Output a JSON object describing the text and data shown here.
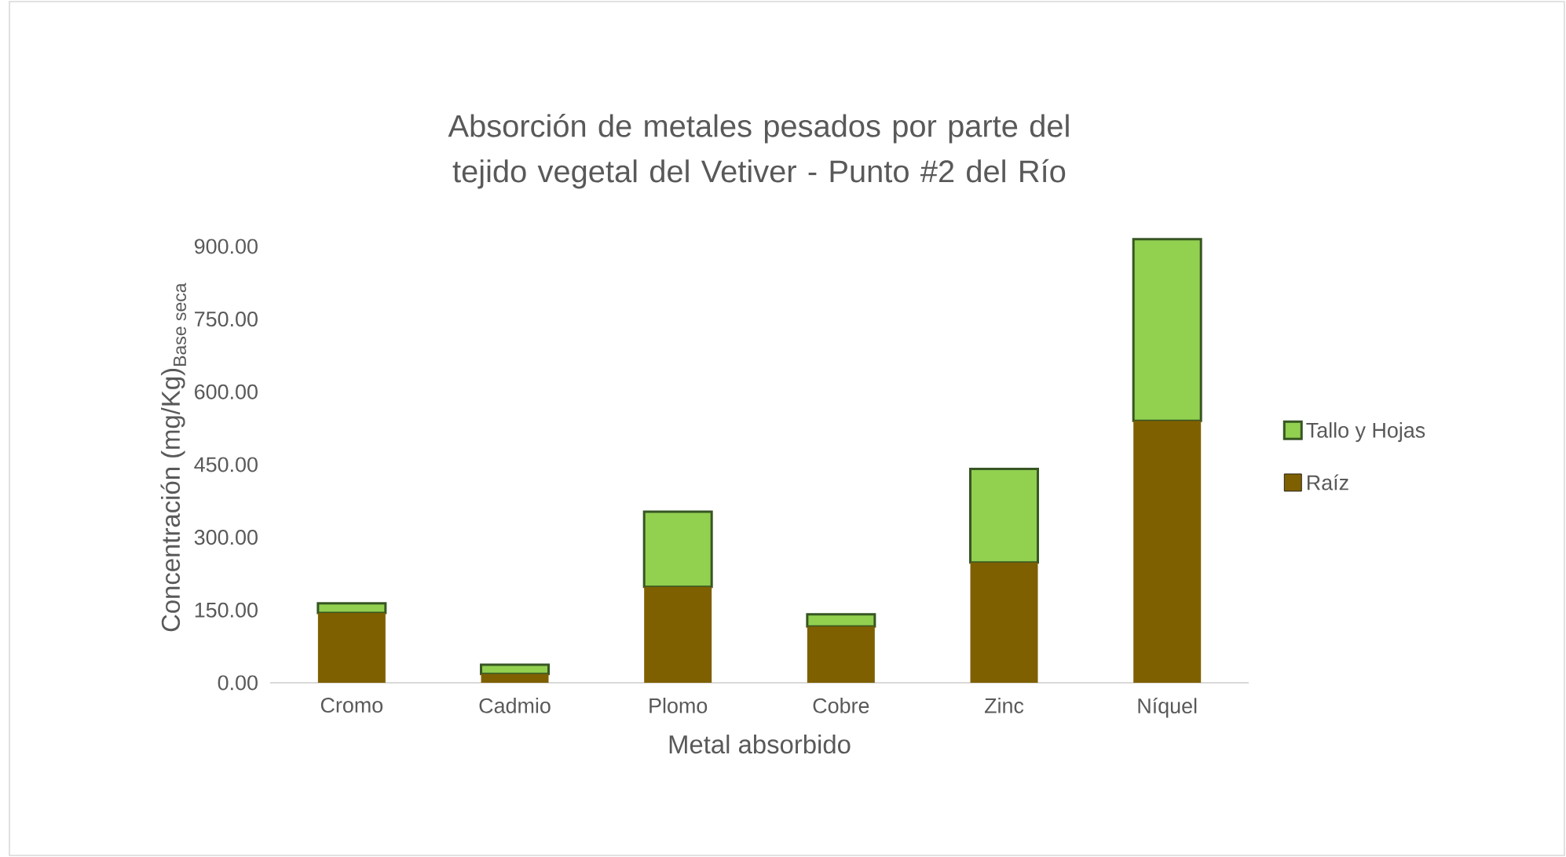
{
  "chart_data": {
    "type": "bar",
    "stacked": true,
    "title": "Absorción de metales pesados por parte del tejido vegetal del Vetiver - Punto #2 del Río",
    "xlabel": "Metal absorbido",
    "ylabel": "\\text{Concentración (mg/Kg)}_{\\text{Base seca}}",
    "categories": [
      "Cromo",
      "Cadmio",
      "Plomo",
      "Cobre",
      "Zinc",
      "Níquel"
    ],
    "series": [
      {
        "name": "Raíz",
        "color": "#7f6000",
        "values": [
          144,
          18,
          198,
          116,
          248,
          540
        ]
      },
      {
        "name": "Tallo y Hojas",
        "color": "#92d050",
        "values": [
          20,
          19,
          155,
          25,
          193,
          375
        ]
      }
    ],
    "ylim": [
      0,
      930
    ],
    "yticks": [
      {
        "value": 0,
        "label": "0.00"
      },
      {
        "value": 150,
        "label": "150.00"
      },
      {
        "value": 300,
        "label": "300.00"
      },
      {
        "value": 450,
        "label": "450.00"
      },
      {
        "value": 600,
        "label": "600.00"
      },
      {
        "value": 750,
        "label": "750.00"
      },
      {
        "value": 900,
        "label": "900.00"
      }
    ],
    "legend": "right"
  }
}
